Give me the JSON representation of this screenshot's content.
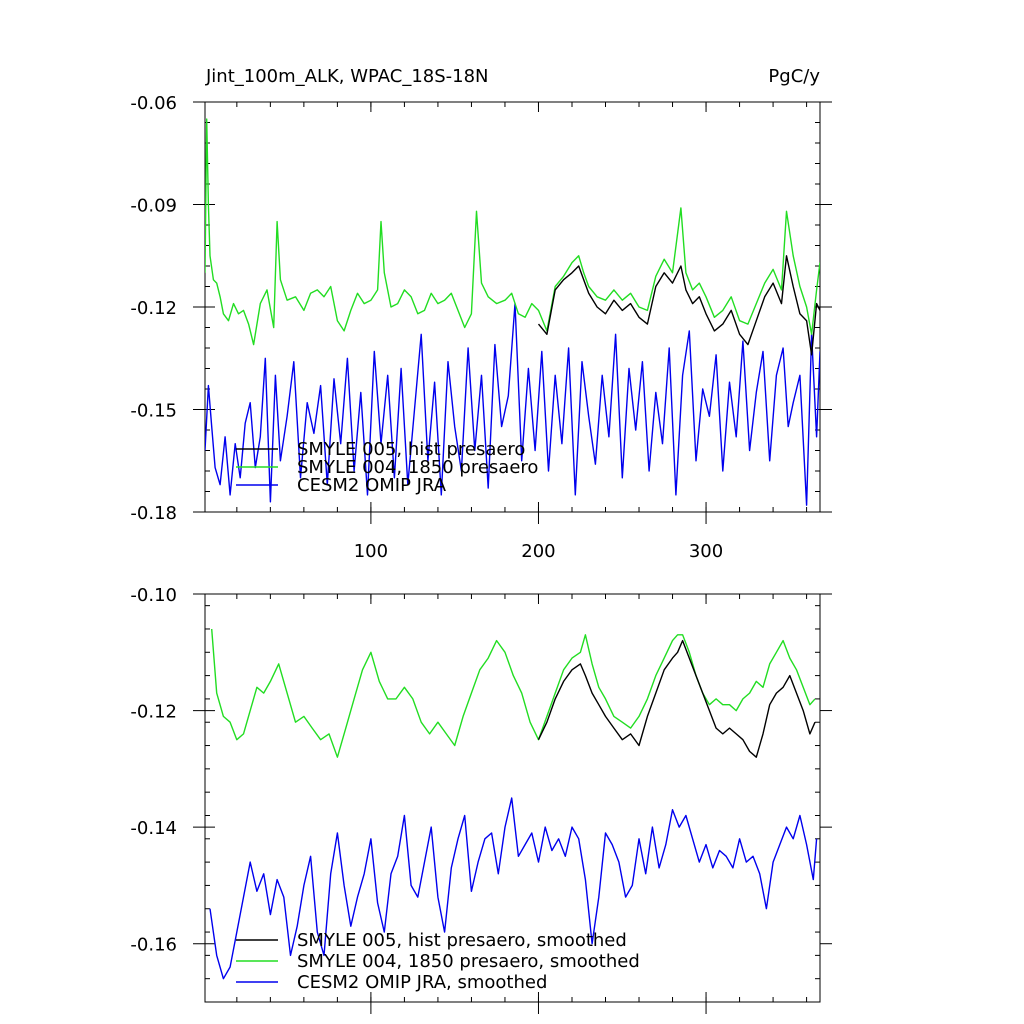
{
  "header": {
    "title": "Jint_100m_ALK, WPAC_18S-18N",
    "units": "PgC/y"
  },
  "colors": {
    "smyle005": "#000000",
    "smyle004": "#22dd22",
    "omip": "#0000ee"
  },
  "chart_data": [
    {
      "type": "line",
      "title": "Jint_100m_ALK, WPAC_18S-18N",
      "units": "PgC/y",
      "xlabel": "",
      "ylabel": "",
      "xlim": [
        1,
        368
      ],
      "ylim": [
        -0.18,
        -0.06
      ],
      "xticks": [
        100,
        200,
        300
      ],
      "xtick_labels": [
        "100",
        "200",
        "300"
      ],
      "yticks": [
        -0.18,
        -0.15,
        -0.12,
        -0.09,
        -0.06
      ],
      "ytick_labels": [
        "-0.18",
        "-0.15",
        "-0.12",
        "-0.09",
        "-0.06"
      ],
      "legend_position": "bottom-left",
      "series": [
        {
          "name": "SMYLE 005, hist presaero",
          "color": "#000000",
          "x": [
            200,
            205,
            210,
            215,
            220,
            224,
            227,
            230,
            235,
            240,
            245,
            250,
            255,
            260,
            265,
            270,
            275,
            280,
            285,
            288,
            292,
            296,
            300,
            305,
            310,
            315,
            320,
            325,
            330,
            335,
            340,
            345,
            348,
            352,
            356,
            360,
            363,
            366,
            368
          ],
          "values": [
            -0.125,
            -0.128,
            -0.115,
            -0.112,
            -0.11,
            -0.108,
            -0.112,
            -0.116,
            -0.12,
            -0.122,
            -0.118,
            -0.121,
            -0.119,
            -0.123,
            -0.125,
            -0.114,
            -0.11,
            -0.113,
            -0.108,
            -0.115,
            -0.119,
            -0.117,
            -0.122,
            -0.127,
            -0.125,
            -0.121,
            -0.128,
            -0.131,
            -0.124,
            -0.117,
            -0.113,
            -0.119,
            -0.105,
            -0.114,
            -0.122,
            -0.124,
            -0.134,
            -0.119,
            -0.121
          ]
        },
        {
          "name": "SMYLE 004, 1850 presaero",
          "color": "#22dd22",
          "x": [
            1,
            2,
            3,
            4,
            6,
            8,
            10,
            12,
            15,
            18,
            21,
            24,
            27,
            30,
            34,
            38,
            42,
            44,
            46,
            50,
            55,
            60,
            64,
            68,
            72,
            76,
            80,
            84,
            88,
            92,
            96,
            100,
            104,
            106,
            108,
            112,
            116,
            120,
            124,
            128,
            132,
            136,
            140,
            144,
            148,
            152,
            156,
            160,
            163,
            166,
            170,
            175,
            180,
            184,
            188,
            192,
            196,
            200,
            205,
            210,
            215,
            220,
            224,
            227,
            230,
            235,
            240,
            245,
            250,
            255,
            260,
            265,
            270,
            275,
            280,
            285,
            288,
            292,
            296,
            300,
            305,
            310,
            315,
            320,
            325,
            330,
            335,
            340,
            345,
            348,
            352,
            356,
            360,
            363,
            366,
            368
          ],
          "values": [
            -0.11,
            -0.065,
            -0.09,
            -0.105,
            -0.112,
            -0.113,
            -0.117,
            -0.122,
            -0.124,
            -0.119,
            -0.122,
            -0.121,
            -0.125,
            -0.131,
            -0.119,
            -0.115,
            -0.126,
            -0.095,
            -0.112,
            -0.118,
            -0.117,
            -0.121,
            -0.116,
            -0.115,
            -0.117,
            -0.114,
            -0.124,
            -0.127,
            -0.121,
            -0.116,
            -0.119,
            -0.118,
            -0.115,
            -0.095,
            -0.11,
            -0.12,
            -0.119,
            -0.115,
            -0.117,
            -0.122,
            -0.121,
            -0.116,
            -0.119,
            -0.118,
            -0.116,
            -0.121,
            -0.126,
            -0.122,
            -0.092,
            -0.113,
            -0.117,
            -0.119,
            -0.118,
            -0.116,
            -0.122,
            -0.123,
            -0.119,
            -0.121,
            -0.127,
            -0.114,
            -0.111,
            -0.107,
            -0.105,
            -0.11,
            -0.114,
            -0.117,
            -0.118,
            -0.115,
            -0.118,
            -0.116,
            -0.12,
            -0.121,
            -0.111,
            -0.106,
            -0.11,
            -0.091,
            -0.11,
            -0.115,
            -0.113,
            -0.117,
            -0.123,
            -0.121,
            -0.117,
            -0.124,
            -0.125,
            -0.119,
            -0.113,
            -0.109,
            -0.115,
            -0.092,
            -0.105,
            -0.114,
            -0.12,
            -0.128,
            -0.115,
            -0.107
          ]
        },
        {
          "name": "CESM2 OMIP JRA",
          "color": "#0000ee",
          "x": [
            1,
            3,
            5,
            7,
            10,
            13,
            16,
            19,
            22,
            25,
            28,
            31,
            34,
            37,
            40,
            43,
            46,
            50,
            54,
            58,
            62,
            66,
            70,
            74,
            78,
            82,
            86,
            90,
            94,
            98,
            102,
            106,
            110,
            114,
            118,
            122,
            126,
            130,
            134,
            138,
            142,
            146,
            150,
            154,
            158,
            162,
            166,
            170,
            174,
            178,
            182,
            186,
            190,
            194,
            198,
            202,
            206,
            210,
            214,
            218,
            222,
            226,
            230,
            234,
            238,
            242,
            246,
            250,
            254,
            258,
            262,
            266,
            270,
            274,
            278,
            282,
            286,
            290,
            294,
            298,
            302,
            306,
            310,
            314,
            318,
            322,
            326,
            330,
            334,
            338,
            342,
            346,
            349,
            352,
            356,
            360,
            363,
            366,
            368
          ],
          "values": [
            -0.162,
            -0.143,
            -0.155,
            -0.167,
            -0.172,
            -0.158,
            -0.175,
            -0.16,
            -0.17,
            -0.154,
            -0.148,
            -0.167,
            -0.158,
            -0.135,
            -0.177,
            -0.14,
            -0.165,
            -0.152,
            -0.136,
            -0.17,
            -0.148,
            -0.157,
            -0.143,
            -0.172,
            -0.141,
            -0.16,
            -0.135,
            -0.168,
            -0.145,
            -0.175,
            -0.133,
            -0.16,
            -0.14,
            -0.17,
            -0.138,
            -0.172,
            -0.15,
            -0.128,
            -0.165,
            -0.142,
            -0.175,
            -0.136,
            -0.155,
            -0.168,
            -0.132,
            -0.162,
            -0.14,
            -0.173,
            -0.131,
            -0.155,
            -0.146,
            -0.119,
            -0.165,
            -0.138,
            -0.162,
            -0.133,
            -0.168,
            -0.14,
            -0.16,
            -0.132,
            -0.175,
            -0.136,
            -0.152,
            -0.166,
            -0.14,
            -0.158,
            -0.128,
            -0.17,
            -0.138,
            -0.156,
            -0.136,
            -0.168,
            -0.145,
            -0.16,
            -0.132,
            -0.175,
            -0.14,
            -0.127,
            -0.165,
            -0.144,
            -0.152,
            -0.134,
            -0.168,
            -0.142,
            -0.158,
            -0.13,
            -0.162,
            -0.145,
            -0.133,
            -0.165,
            -0.14,
            -0.132,
            -0.155,
            -0.148,
            -0.14,
            -0.178,
            -0.128,
            -0.158,
            -0.133
          ]
        }
      ]
    },
    {
      "type": "line",
      "title": "",
      "xlabel": "",
      "ylabel": "",
      "xlim": [
        1,
        368
      ],
      "ylim": [
        -0.17,
        -0.1
      ],
      "xticks": [
        100,
        200,
        300
      ],
      "xtick_labels": [],
      "yticks": [
        -0.16,
        -0.14,
        -0.12,
        -0.1
      ],
      "ytick_labels": [
        "-0.16",
        "-0.14",
        "-0.12",
        "-0.10"
      ],
      "legend_position": "bottom-left",
      "series": [
        {
          "name": "SMYLE 005, hist presaero, smoothed",
          "color": "#000000",
          "x": [
            200,
            205,
            210,
            215,
            220,
            225,
            228,
            232,
            236,
            240,
            245,
            250,
            255,
            260,
            265,
            270,
            275,
            280,
            283,
            286,
            290,
            294,
            298,
            302,
            306,
            310,
            314,
            318,
            322,
            326,
            330,
            334,
            338,
            342,
            346,
            350,
            354,
            358,
            362,
            365
          ],
          "values": [
            -0.125,
            -0.122,
            -0.118,
            -0.115,
            -0.113,
            -0.112,
            -0.114,
            -0.117,
            -0.119,
            -0.121,
            -0.123,
            -0.125,
            -0.124,
            -0.126,
            -0.121,
            -0.117,
            -0.113,
            -0.111,
            -0.11,
            -0.108,
            -0.111,
            -0.114,
            -0.117,
            -0.12,
            -0.123,
            -0.124,
            -0.123,
            -0.124,
            -0.125,
            -0.127,
            -0.128,
            -0.124,
            -0.119,
            -0.117,
            -0.116,
            -0.114,
            -0.117,
            -0.12,
            -0.124,
            -0.122
          ]
        },
        {
          "name": "SMYLE 004, 1850 presaero, smoothed",
          "color": "#22dd22",
          "x": [
            5,
            8,
            12,
            16,
            20,
            24,
            28,
            32,
            36,
            40,
            45,
            50,
            55,
            60,
            65,
            70,
            75,
            80,
            85,
            90,
            95,
            100,
            105,
            110,
            115,
            120,
            125,
            130,
            135,
            140,
            145,
            150,
            155,
            160,
            165,
            170,
            175,
            180,
            185,
            190,
            195,
            200,
            205,
            210,
            215,
            220,
            225,
            228,
            232,
            236,
            240,
            245,
            250,
            255,
            260,
            265,
            270,
            275,
            280,
            283,
            286,
            290,
            294,
            298,
            302,
            306,
            310,
            314,
            318,
            322,
            326,
            330,
            334,
            338,
            342,
            346,
            350,
            354,
            358,
            362,
            365
          ],
          "values": [
            -0.106,
            -0.117,
            -0.121,
            -0.122,
            -0.125,
            -0.124,
            -0.12,
            -0.116,
            -0.117,
            -0.115,
            -0.112,
            -0.117,
            -0.122,
            -0.121,
            -0.123,
            -0.125,
            -0.124,
            -0.128,
            -0.123,
            -0.118,
            -0.113,
            -0.11,
            -0.115,
            -0.118,
            -0.118,
            -0.116,
            -0.118,
            -0.122,
            -0.124,
            -0.122,
            -0.124,
            -0.126,
            -0.121,
            -0.117,
            -0.113,
            -0.111,
            -0.108,
            -0.11,
            -0.114,
            -0.117,
            -0.122,
            -0.125,
            -0.121,
            -0.117,
            -0.113,
            -0.111,
            -0.11,
            -0.107,
            -0.112,
            -0.116,
            -0.118,
            -0.121,
            -0.122,
            -0.123,
            -0.121,
            -0.118,
            -0.114,
            -0.111,
            -0.108,
            -0.107,
            -0.107,
            -0.11,
            -0.114,
            -0.117,
            -0.119,
            -0.118,
            -0.119,
            -0.119,
            -0.12,
            -0.118,
            -0.117,
            -0.115,
            -0.116,
            -0.112,
            -0.11,
            -0.108,
            -0.111,
            -0.113,
            -0.116,
            -0.119,
            -0.118
          ]
        },
        {
          "name": "CESM2 OMIP JRA, smoothed",
          "color": "#0000ee",
          "x": [
            4,
            8,
            12,
            16,
            20,
            24,
            28,
            32,
            36,
            40,
            44,
            48,
            52,
            56,
            60,
            64,
            68,
            72,
            76,
            80,
            84,
            88,
            92,
            96,
            100,
            104,
            108,
            112,
            116,
            120,
            124,
            128,
            132,
            136,
            140,
            144,
            148,
            152,
            156,
            160,
            164,
            168,
            172,
            176,
            180,
            184,
            188,
            192,
            196,
            200,
            204,
            208,
            212,
            216,
            220,
            224,
            228,
            232,
            236,
            240,
            244,
            248,
            252,
            256,
            260,
            264,
            268,
            272,
            276,
            280,
            284,
            288,
            292,
            296,
            300,
            304,
            308,
            312,
            316,
            320,
            324,
            328,
            332,
            336,
            340,
            344,
            348,
            352,
            356,
            360,
            364,
            366
          ],
          "values": [
            -0.154,
            -0.162,
            -0.166,
            -0.164,
            -0.158,
            -0.152,
            -0.146,
            -0.151,
            -0.148,
            -0.155,
            -0.149,
            -0.152,
            -0.162,
            -0.157,
            -0.15,
            -0.145,
            -0.158,
            -0.162,
            -0.148,
            -0.141,
            -0.15,
            -0.157,
            -0.152,
            -0.148,
            -0.142,
            -0.153,
            -0.158,
            -0.148,
            -0.145,
            -0.138,
            -0.15,
            -0.152,
            -0.146,
            -0.14,
            -0.152,
            -0.158,
            -0.147,
            -0.142,
            -0.138,
            -0.151,
            -0.146,
            -0.142,
            -0.141,
            -0.148,
            -0.14,
            -0.135,
            -0.145,
            -0.143,
            -0.141,
            -0.146,
            -0.14,
            -0.144,
            -0.142,
            -0.145,
            -0.14,
            -0.142,
            -0.149,
            -0.16,
            -0.152,
            -0.141,
            -0.143,
            -0.146,
            -0.152,
            -0.15,
            -0.142,
            -0.148,
            -0.14,
            -0.147,
            -0.143,
            -0.137,
            -0.14,
            -0.138,
            -0.142,
            -0.146,
            -0.143,
            -0.147,
            -0.144,
            -0.145,
            -0.147,
            -0.142,
            -0.146,
            -0.145,
            -0.148,
            -0.154,
            -0.146,
            -0.143,
            -0.14,
            -0.142,
            -0.138,
            -0.143,
            -0.149,
            -0.142
          ]
        }
      ]
    }
  ]
}
